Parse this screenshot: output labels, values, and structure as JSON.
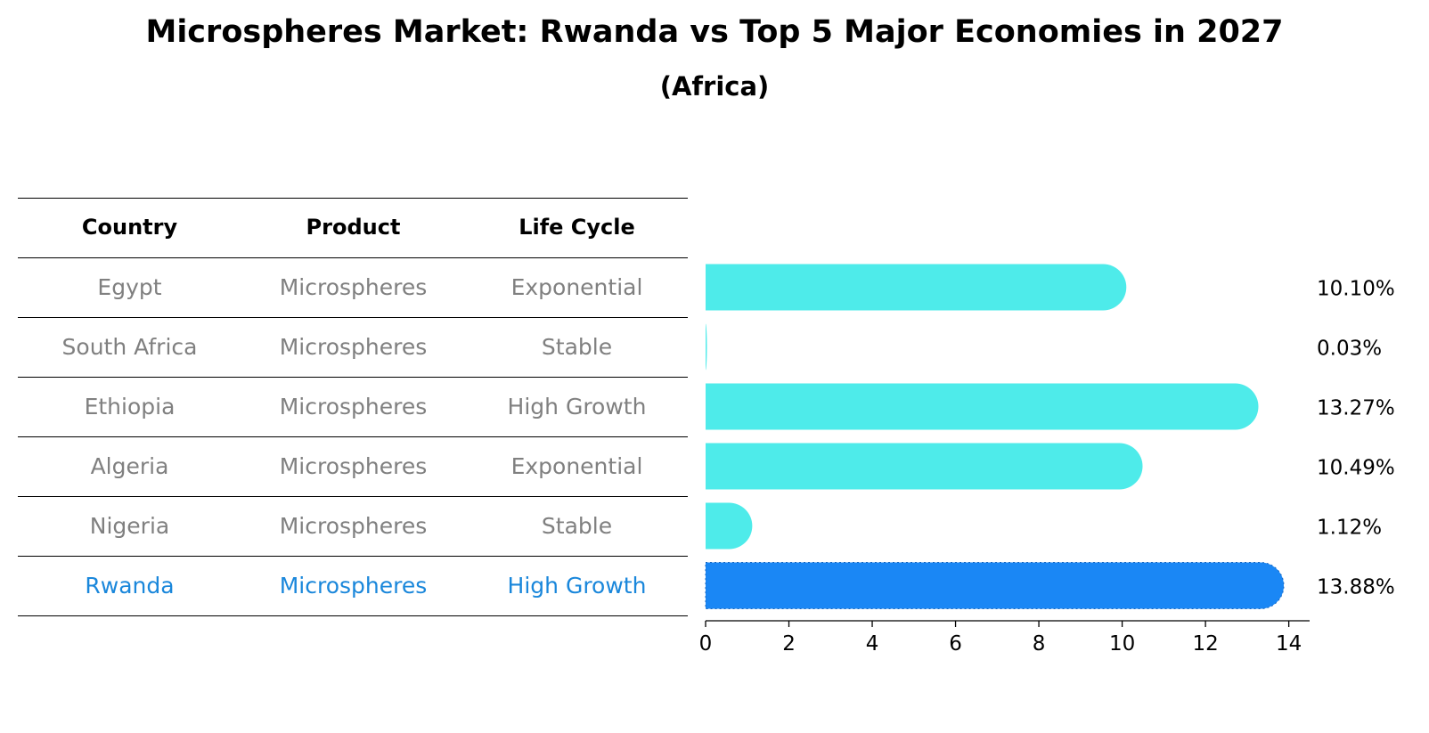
{
  "chart_data": {
    "type": "bar",
    "orientation": "horizontal",
    "title": "Microspheres Market: Rwanda vs Top 5 Major Economies in 2027",
    "subtitle": "(Africa)",
    "categories": [
      "Egypt",
      "South Africa",
      "Ethiopia",
      "Algeria",
      "Nigeria",
      "Rwanda"
    ],
    "values": [
      10.1,
      0.03,
      13.27,
      10.49,
      1.12,
      13.88
    ],
    "value_labels": [
      "10.10%",
      "0.03%",
      "13.27%",
      "10.49%",
      "1.12%",
      "13.88%"
    ],
    "highlight": "Rwanda",
    "xlim": [
      0,
      14.5
    ],
    "xticks": [
      0,
      2,
      4,
      6,
      8,
      10,
      12,
      14
    ],
    "xlabel": "",
    "ylabel": "",
    "colors": {
      "bar": "#4eebea",
      "highlight": "#1a87f5",
      "highlight_text": "#1a87db",
      "text": "#808080"
    }
  },
  "table": {
    "headers": [
      "Country",
      "Product",
      "Life Cycle"
    ],
    "rows": [
      [
        "Egypt",
        "Microspheres",
        "Exponential"
      ],
      [
        "South Africa",
        "Microspheres",
        "Stable"
      ],
      [
        "Ethiopia",
        "Microspheres",
        "High Growth"
      ],
      [
        "Algeria",
        "Microspheres",
        "Exponential"
      ],
      [
        "Nigeria",
        "Microspheres",
        "Stable"
      ],
      [
        "Rwanda",
        "Microspheres",
        "High Growth"
      ]
    ]
  }
}
